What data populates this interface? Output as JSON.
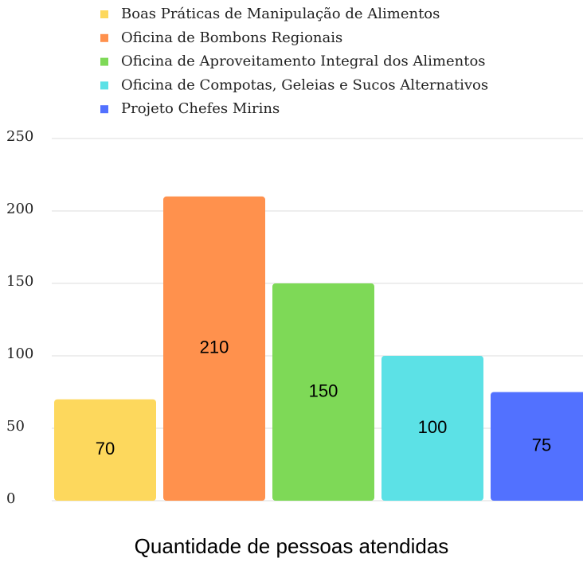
{
  "chart_data": {
    "type": "bar",
    "xlabel": "Quantidade de pessoas atendidas",
    "categories": [
      null
    ],
    "series": [
      {
        "name": "Boas Práticas de Manipulação de Alimentos",
        "color": "#fdd85d",
        "values": [
          70
        ]
      },
      {
        "name": "Oficina de Bombons Regionais",
        "color": "#ff914d",
        "values": [
          210
        ]
      },
      {
        "name": "Oficina de Aproveitamento Integral dos Alimentos",
        "color": "#7ed957",
        "values": [
          150
        ]
      },
      {
        "name": "Oficina de Compotas, Geleias e Sucos Alternativos",
        "color": "#5ce1e6",
        "values": [
          100
        ]
      },
      {
        "name": "Projeto Chefes Mirins",
        "color": "#5271ff",
        "values": [
          75
        ]
      }
    ],
    "ylim": [
      0,
      250
    ],
    "yticks": [
      0,
      50,
      100,
      150,
      200,
      250
    ],
    "grid": true,
    "legend": "top"
  }
}
